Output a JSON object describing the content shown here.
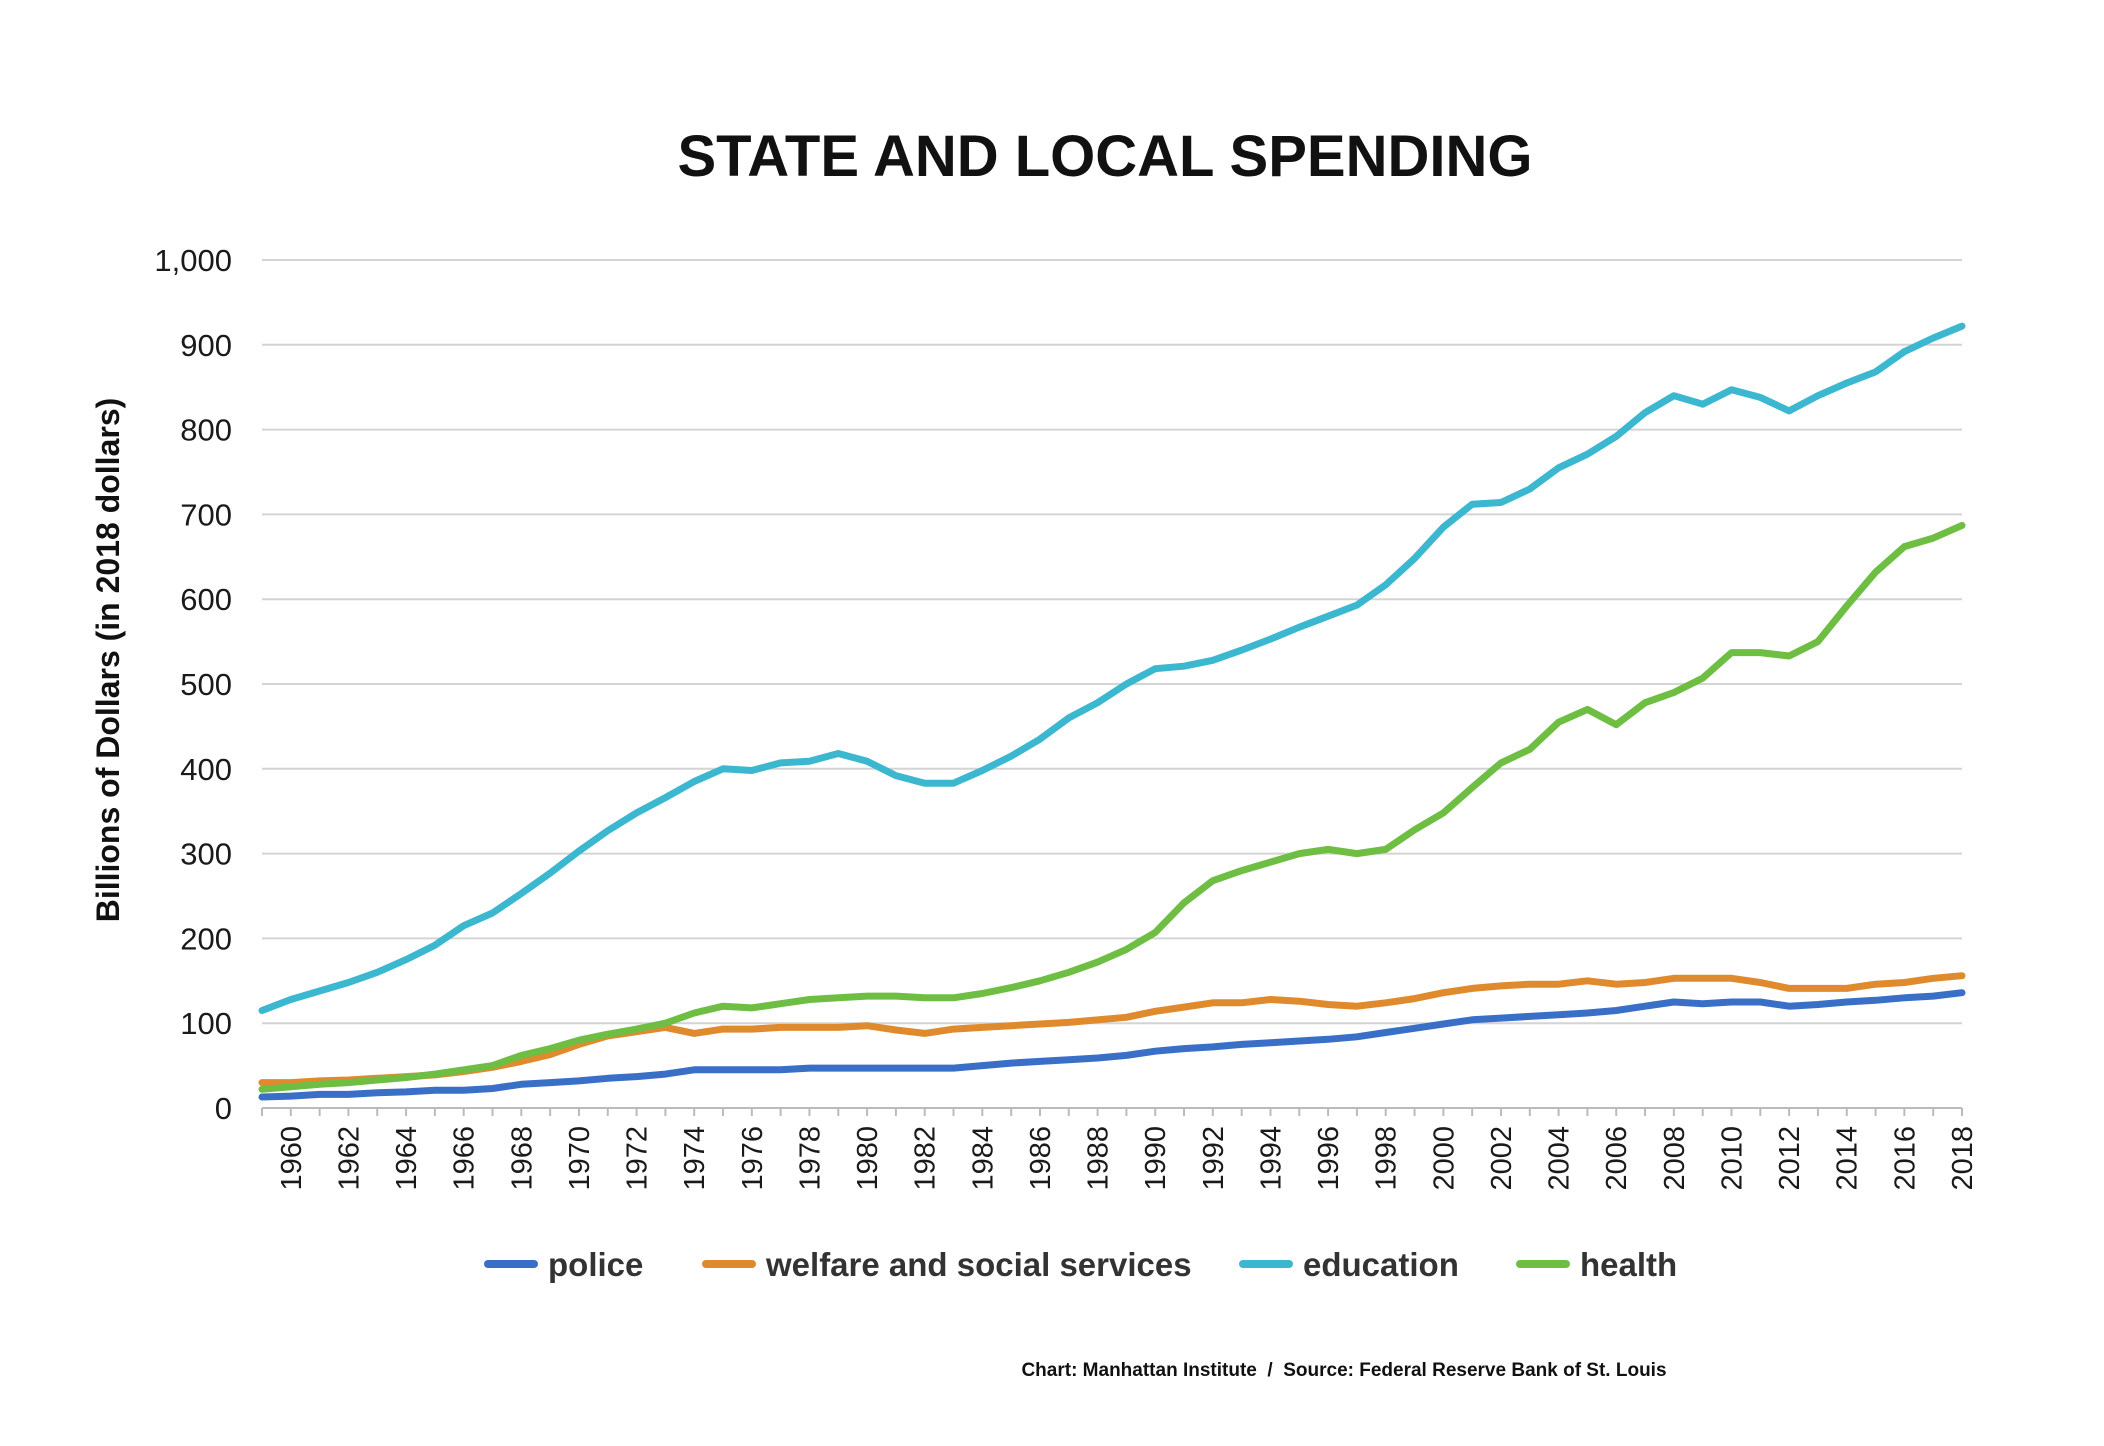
{
  "chart_data": {
    "type": "line",
    "title": "STATE AND LOCAL SPENDING",
    "ylabel": "Billions of Dollars (in 2018 dollars)",
    "xlabel": "",
    "ylim": [
      0,
      1000
    ],
    "yticks": [
      0,
      100,
      200,
      300,
      400,
      500,
      600,
      700,
      800,
      900,
      1000
    ],
    "ytick_labels": [
      "0",
      "100",
      "200",
      "300",
      "400",
      "500",
      "600",
      "700",
      "800",
      "900",
      "1,000"
    ],
    "xlim": [
      1959,
      2018
    ],
    "xtick_labels": [
      "1960",
      "1962",
      "1964",
      "1966",
      "1968",
      "1970",
      "1972",
      "1974",
      "1976",
      "1978",
      "1980",
      "1982",
      "1984",
      "1986",
      "1988",
      "1990",
      "1992",
      "1994",
      "1996",
      "1998",
      "2000",
      "2002",
      "2004",
      "2006",
      "2008",
      "2010",
      "2012",
      "2014",
      "2016",
      "2018"
    ],
    "grid": true,
    "legend_position": "bottom",
    "x": [
      1959,
      1960,
      1961,
      1962,
      1963,
      1964,
      1965,
      1966,
      1967,
      1968,
      1969,
      1970,
      1971,
      1972,
      1973,
      1974,
      1975,
      1976,
      1977,
      1978,
      1979,
      1980,
      1981,
      1982,
      1983,
      1984,
      1985,
      1986,
      1987,
      1988,
      1989,
      1990,
      1991,
      1992,
      1993,
      1994,
      1995,
      1996,
      1997,
      1998,
      1999,
      2000,
      2001,
      2002,
      2003,
      2004,
      2005,
      2006,
      2007,
      2008,
      2009,
      2010,
      2011,
      2012,
      2013,
      2014,
      2015,
      2016,
      2017,
      2018
    ],
    "series": [
      {
        "name": "police",
        "color": "#3a6fc8",
        "values": [
          13,
          14,
          16,
          16,
          18,
          19,
          21,
          21,
          23,
          28,
          30,
          32,
          35,
          37,
          40,
          45,
          45,
          45,
          45,
          47,
          47,
          47,
          47,
          47,
          47,
          50,
          53,
          55,
          57,
          59,
          62,
          67,
          70,
          72,
          75,
          77,
          79,
          81,
          84,
          89,
          94,
          99,
          104,
          106,
          108,
          110,
          112,
          115,
          120,
          125,
          123,
          125,
          125,
          120,
          122,
          125,
          127,
          130,
          132,
          136
        ]
      },
      {
        "name": "welfare and social services",
        "color": "#e08a2e",
        "values": [
          30,
          30,
          32,
          33,
          35,
          37,
          39,
          43,
          48,
          55,
          63,
          75,
          85,
          90,
          95,
          88,
          93,
          93,
          95,
          95,
          95,
          97,
          92,
          88,
          93,
          95,
          97,
          99,
          101,
          104,
          107,
          114,
          119,
          124,
          124,
          128,
          126,
          122,
          120,
          124,
          129,
          136,
          141,
          144,
          146,
          146,
          150,
          146,
          148,
          153,
          153,
          153,
          148,
          141,
          141,
          141,
          146,
          148,
          153,
          156
        ]
      },
      {
        "name": "education",
        "color": "#3bb8cf",
        "values": [
          115,
          128,
          138,
          148,
          160,
          175,
          192,
          215,
          230,
          253,
          277,
          303,
          327,
          348,
          366,
          385,
          400,
          398,
          407,
          409,
          418,
          409,
          392,
          383,
          383,
          398,
          415,
          435,
          460,
          478,
          500,
          518,
          521,
          528,
          540,
          553,
          567,
          580,
          593,
          617,
          648,
          685,
          712,
          714,
          730,
          755,
          771,
          792,
          820,
          840,
          830,
          847,
          838,
          822,
          840,
          855,
          868,
          892,
          908,
          922
        ]
      },
      {
        "name": "health",
        "color": "#6fbe44",
        "values": [
          22,
          25,
          28,
          30,
          33,
          36,
          40,
          45,
          50,
          62,
          70,
          80,
          87,
          93,
          100,
          112,
          120,
          118,
          123,
          128,
          130,
          132,
          132,
          130,
          130,
          135,
          142,
          150,
          160,
          172,
          187,
          207,
          242,
          268,
          280,
          290,
          300,
          305,
          300,
          305,
          328,
          348,
          378,
          407,
          423,
          455,
          470,
          452,
          478,
          490,
          507,
          537,
          537,
          533,
          550,
          592,
          632,
          662,
          672,
          687
        ]
      }
    ]
  },
  "source_note": "Chart: Manhattan Institute  /  Source: Federal Reserve Bank of St. Louis"
}
